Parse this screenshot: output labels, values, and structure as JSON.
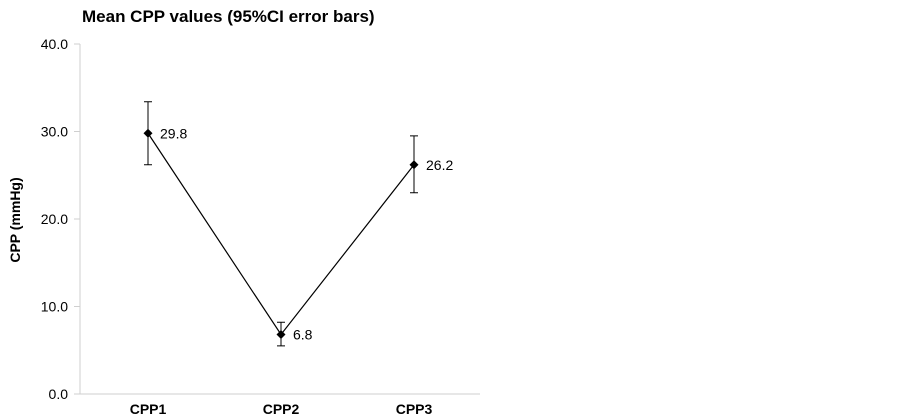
{
  "chart_data": {
    "type": "line",
    "title": "Mean CPP values (95%CI error bars)",
    "xlabel": "",
    "ylabel": "CPP (mmHg)",
    "categories": [
      "CPP1",
      "CPP2",
      "CPP3"
    ],
    "values": [
      29.8,
      6.8,
      26.2
    ],
    "error_bars": {
      "lower": [
        26.2,
        5.5,
        23.0
      ],
      "upper": [
        33.4,
        8.2,
        29.5
      ]
    },
    "data_labels": [
      "29.8",
      "6.8",
      "26.2"
    ],
    "ylim": [
      0,
      40
    ],
    "yticks": [
      0,
      10,
      20,
      30,
      40
    ],
    "ytick_labels": [
      "0.0",
      "10.0",
      "20.0",
      "30.0",
      "40.0"
    ],
    "grid": false,
    "marker": "diamond",
    "line_color": "#000000"
  }
}
